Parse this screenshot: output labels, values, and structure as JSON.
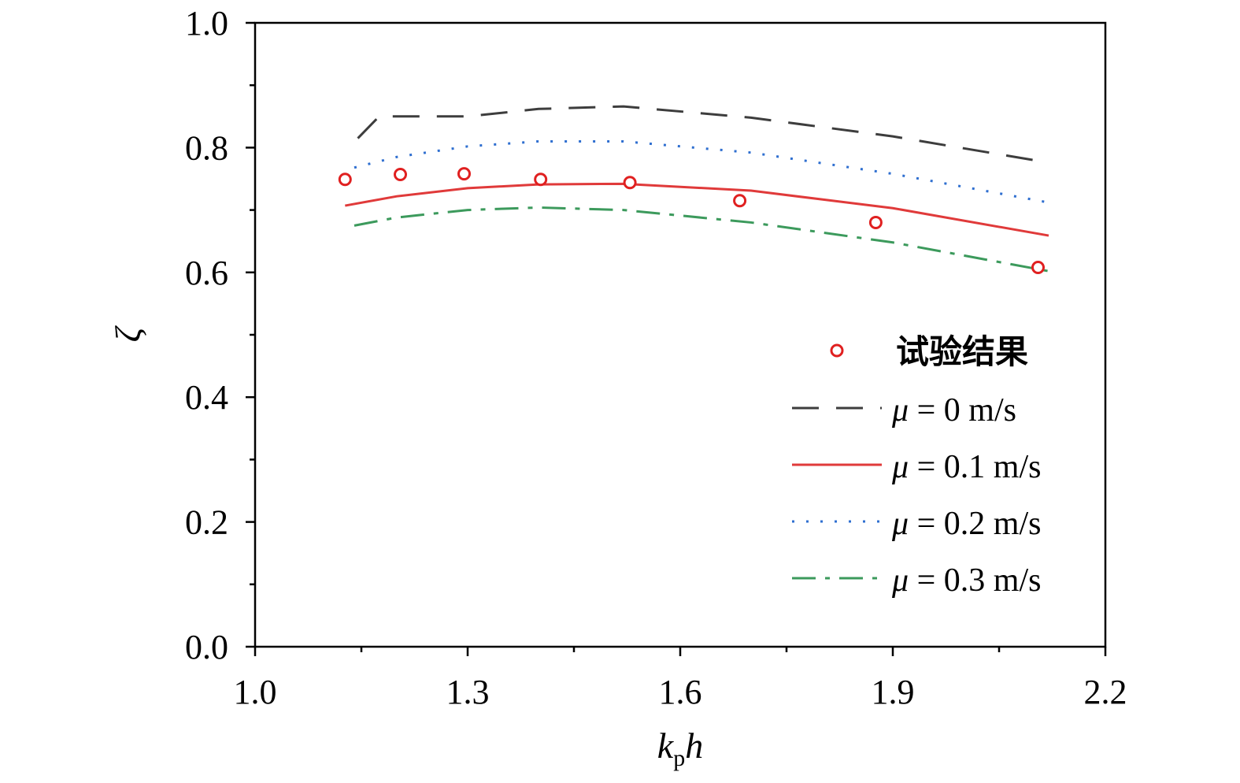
{
  "chart_data": {
    "type": "line",
    "xlabel": "k",
    "xlabel_sub": "p",
    "xlabel_tail": "h",
    "ylabel": "ζ",
    "xlim": [
      1.0,
      2.2
    ],
    "ylim": [
      0.0,
      1.0
    ],
    "xticks": [
      "1.0",
      "1.3",
      "1.6",
      "1.9",
      "2.2"
    ],
    "yticks": [
      "0.0",
      "0.2",
      "0.4",
      "0.6",
      "0.8",
      "1.0"
    ],
    "grid": false,
    "legend_position": "right-center",
    "series": [
      {
        "name": "试验结果",
        "kind": "scatter",
        "color": "#e02020",
        "x": [
          1.127,
          1.205,
          1.295,
          1.403,
          1.529,
          1.684,
          1.876,
          2.105
        ],
        "y": [
          0.749,
          0.757,
          0.758,
          0.749,
          0.744,
          0.715,
          0.68,
          0.608
        ]
      },
      {
        "name": "μ = 0 m/s",
        "legend_symbol": "μ",
        "legend_rest": " = 0 m/s",
        "kind": "line",
        "dash": "dashed",
        "color": "#3d3d3d",
        "x": [
          1.145,
          1.175,
          1.3,
          1.4,
          1.52,
          1.7,
          1.9,
          2.12
        ],
        "y": [
          0.815,
          0.85,
          0.85,
          0.862,
          0.866,
          0.848,
          0.818,
          0.776
        ]
      },
      {
        "name": "μ = 0.1 m/s",
        "legend_symbol": "μ",
        "legend_rest": " = 0.1 m/s",
        "kind": "line",
        "dash": "solid",
        "color": "#e03a3a",
        "x": [
          1.127,
          1.2,
          1.3,
          1.4,
          1.52,
          1.7,
          1.9,
          2.12
        ],
        "y": [
          0.707,
          0.722,
          0.735,
          0.741,
          0.742,
          0.731,
          0.703,
          0.659
        ]
      },
      {
        "name": "μ = 0.2 m/s",
        "legend_symbol": "μ",
        "legend_rest": " = 0.2 m/s",
        "kind": "line",
        "dash": "dotted",
        "color": "#2f6fd0",
        "x": [
          1.14,
          1.2,
          1.3,
          1.4,
          1.52,
          1.7,
          1.9,
          2.12
        ],
        "y": [
          0.768,
          0.785,
          0.802,
          0.81,
          0.81,
          0.792,
          0.758,
          0.712
        ]
      },
      {
        "name": "μ = 0.3 m/s",
        "legend_symbol": "μ",
        "legend_rest": " = 0.3 m/s",
        "kind": "line",
        "dash": "dashdot",
        "color": "#3c9a5c",
        "x": [
          1.14,
          1.2,
          1.3,
          1.4,
          1.52,
          1.7,
          1.9,
          2.12
        ],
        "y": [
          0.675,
          0.688,
          0.7,
          0.704,
          0.7,
          0.68,
          0.648,
          0.602
        ]
      }
    ]
  }
}
